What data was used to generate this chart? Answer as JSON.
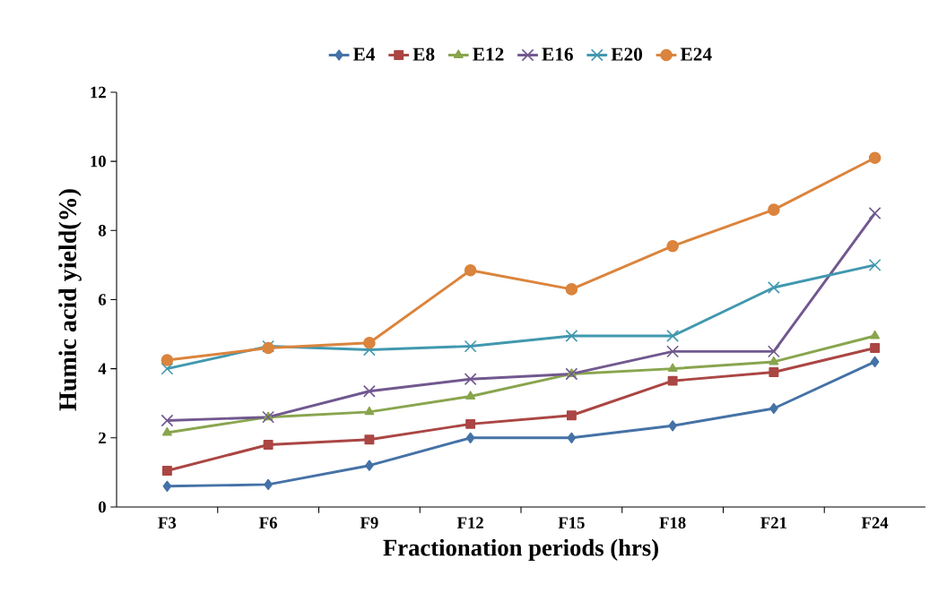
{
  "chart_data": {
    "type": "line",
    "xlabel": "Fractionation periods (hrs)",
    "ylabel": "Humic acid yield(%)",
    "categories": [
      "F3",
      "F6",
      "F9",
      "F12",
      "F15",
      "F18",
      "F21",
      "F24"
    ],
    "ylim": [
      0,
      12
    ],
    "yticks": [
      0,
      2,
      4,
      6,
      8,
      10,
      12
    ],
    "grid": false,
    "legend": "top",
    "series": [
      {
        "name": "E4",
        "color": "#4572a7",
        "marker": "diamond",
        "values": [
          0.6,
          0.65,
          1.2,
          2.0,
          2.0,
          2.35,
          2.85,
          4.2
        ]
      },
      {
        "name": "E8",
        "color": "#aa4643",
        "marker": "square",
        "values": [
          1.05,
          1.8,
          1.95,
          2.4,
          2.65,
          3.65,
          3.9,
          4.6
        ]
      },
      {
        "name": "E12",
        "color": "#89a54e",
        "marker": "triangle",
        "values": [
          2.15,
          2.6,
          2.75,
          3.2,
          3.85,
          4.0,
          4.2,
          4.95
        ]
      },
      {
        "name": "E16",
        "color": "#71588f",
        "marker": "cross",
        "values": [
          2.5,
          2.6,
          3.35,
          3.7,
          3.85,
          4.5,
          4.5,
          8.5
        ]
      },
      {
        "name": "E20",
        "color": "#4198af",
        "marker": "cross",
        "values": [
          4.0,
          4.65,
          4.55,
          4.65,
          4.95,
          4.95,
          6.35,
          7.0
        ]
      },
      {
        "name": "E24",
        "color": "#db843d",
        "marker": "circle",
        "values": [
          4.25,
          4.6,
          4.75,
          6.85,
          6.3,
          7.55,
          8.6,
          10.1
        ]
      }
    ]
  }
}
